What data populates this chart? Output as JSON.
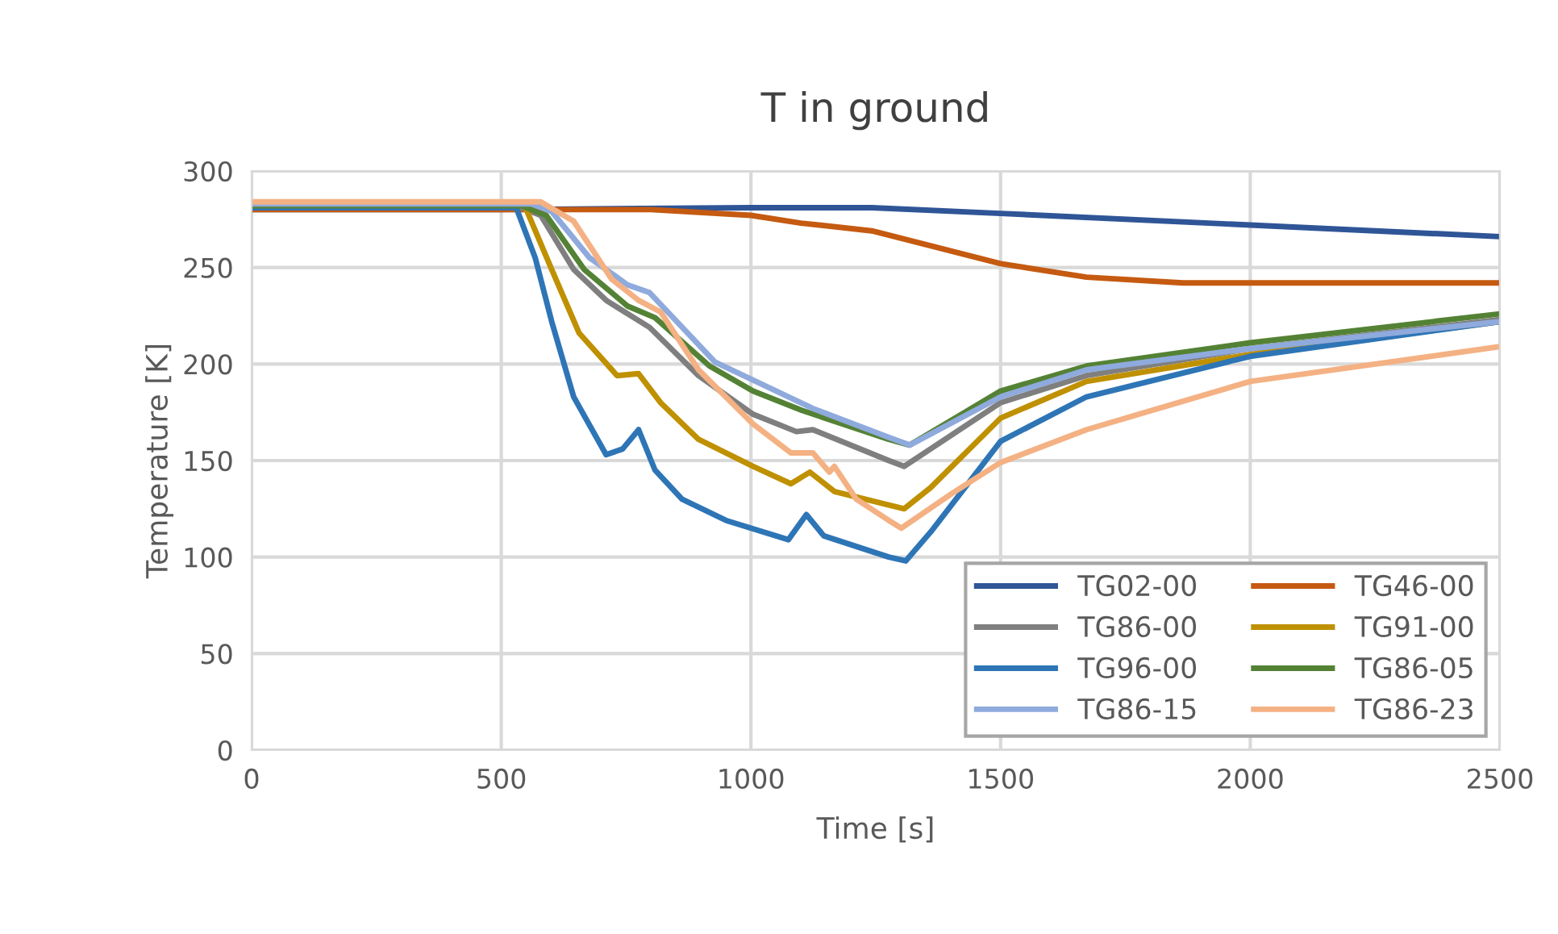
{
  "chart_data": {
    "type": "line",
    "title": "T in ground",
    "xlabel": "Time [s]",
    "ylabel": "Temperature [K]",
    "xlim": [
      0,
      2500
    ],
    "xticks": [
      0,
      500,
      1000,
      1500,
      2000,
      2500
    ],
    "ylim": [
      0,
      300
    ],
    "yticks": [
      0,
      50,
      100,
      150,
      200,
      250,
      300
    ],
    "grid": true,
    "legend": "bottom right",
    "marker": "none",
    "line_style": "solid",
    "series": [
      {
        "name": "TG02-00",
        "color": "#2f5597",
        "x": [
          0,
          500,
          1000,
          1242,
          1500,
          2000,
          2500
        ],
        "values": [
          280,
          280,
          281,
          281,
          278,
          272,
          266
        ]
      },
      {
        "name": "TG46-00",
        "color": "#c55a11",
        "x": [
          0,
          500,
          800,
          1000,
          1100,
          1242,
          1500,
          1672,
          1865,
          2000,
          2500
        ],
        "values": [
          280,
          280,
          280,
          277,
          273,
          269,
          252,
          245,
          242,
          242,
          242
        ]
      },
      {
        "name": "TG86-00",
        "color": "#7f7f7f",
        "x": [
          0,
          530,
          579,
          645,
          710,
          797,
          895,
          1004,
          1091,
          1124,
          1276,
          1307,
          1500,
          1672,
          2000,
          2500
        ],
        "values": [
          282,
          282,
          277,
          249,
          233,
          219,
          194,
          174,
          165,
          166,
          150,
          147,
          180,
          194,
          208,
          223
        ]
      },
      {
        "name": "TG91-00",
        "color": "#bf9000",
        "x": [
          0,
          547,
          601,
          656,
          732,
          775,
          819,
          895,
          1004,
          1080,
          1118,
          1167,
          1276,
          1307,
          1360,
          1500,
          1672,
          2000,
          2500
        ],
        "values": [
          282,
          282,
          249,
          216,
          194,
          195,
          180,
          161,
          147,
          138,
          144,
          134,
          127,
          125,
          136,
          172,
          191,
          205,
          222
        ]
      },
      {
        "name": "TG96-00",
        "color": "#2e75b6",
        "x": [
          0,
          530,
          568,
          601,
          645,
          710,
          743,
          775,
          808,
          862,
          950,
          1075,
          1111,
          1146,
          1276,
          1310,
          1360,
          1500,
          1672,
          2000,
          2500
        ],
        "values": [
          281,
          281,
          255,
          222,
          183,
          153,
          156,
          166,
          145,
          130,
          119,
          109,
          122,
          111,
          100,
          98,
          113,
          160,
          183,
          204,
          222
        ]
      },
      {
        "name": "TG86-05",
        "color": "#548235",
        "x": [
          0,
          540,
          590,
          666,
          753,
          808,
          917,
          1004,
          1102,
          1276,
          1318,
          1500,
          1672,
          2000,
          2500
        ],
        "values": [
          282,
          282,
          277,
          249,
          230,
          224,
          199,
          186,
          176,
          161,
          158,
          186,
          199,
          211,
          226
        ]
      },
      {
        "name": "TG86-15",
        "color": "#8faadc",
        "x": [
          0,
          560,
          601,
          677,
          753,
          797,
          928,
          1124,
          1276,
          1318,
          1500,
          1672,
          2000,
          2500
        ],
        "values": [
          283,
          283,
          279,
          255,
          241,
          237,
          201,
          177,
          162,
          158,
          183,
          197,
          208,
          222
        ]
      },
      {
        "name": "TG86-23",
        "color": "#f4b183",
        "x": [
          0,
          540,
          579,
          645,
          721,
          775,
          819,
          895,
          1004,
          1080,
          1124,
          1157,
          1167,
          1211,
          1276,
          1301,
          1403,
          1500,
          1672,
          2000,
          2500
        ],
        "values": [
          284,
          284,
          284,
          274,
          244,
          233,
          227,
          197,
          169,
          154,
          154,
          144,
          147,
          130,
          119,
          115,
          133,
          149,
          166,
          191,
          209
        ]
      }
    ]
  }
}
